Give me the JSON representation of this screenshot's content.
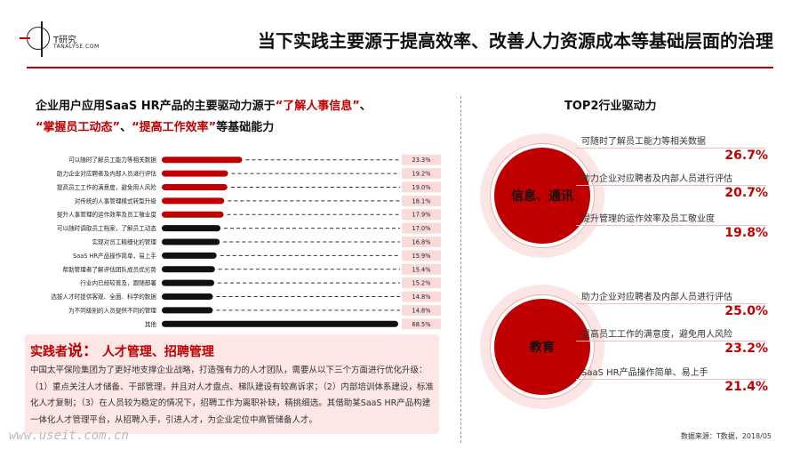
{
  "logo": {
    "name": "T研究",
    "sub": "TANALYSE.COM"
  },
  "header": {
    "title": "当下实践主要源于提高效率、改善人力资源成本等基础层面的治理"
  },
  "left_title": {
    "line1_pre": "企业用户应用SaaS HR产品的主要驱动力源于",
    "line1_hl": "“了解人事信息”",
    "line1_post": "、",
    "line2_hl1": "“掌握员工动态”",
    "line2_mid": "、",
    "line2_hl2": "“提高工作效率”",
    "line2_post": "等基础能力"
  },
  "chart_data": {
    "type": "bar",
    "orientation": "horizontal",
    "categories": [
      "可以随时了解员工能力等相关数据",
      "助力企业对应聘者及内部人员进行评估",
      "提高员工工作的满意度，避免用人风险",
      "对传统的人事管理模式转型升级",
      "提升人事管理的运作效率及员工敬业度",
      "可以随时调取员工档案，了解员工动态",
      "实现对员工精细化的管理",
      "SaaS HR产品操作简单，易上手",
      "帮助管理者了解评估团队成员优劣势",
      "行业内已经较普及，跟随部署",
      "选拔人才时提供客观、全面、科学的数据",
      "为不同级别的人员提供不同的管理",
      "其他"
    ],
    "values": [
      23.3,
      19.2,
      19.0,
      18.1,
      17.9,
      17.0,
      16.8,
      15.9,
      15.4,
      15.2,
      14.8,
      14.8,
      68.5
    ],
    "value_labels": [
      "23.3%",
      "19.2%",
      "19.0%",
      "18.1%",
      "17.9%",
      "17.0%",
      "16.8%",
      "15.9%",
      "15.4%",
      "15.2%",
      "14.8%",
      "14.8%",
      "68.5%"
    ],
    "highlight_count": 5,
    "colors": {
      "highlight": "#c00000",
      "normal": "#111111",
      "label_bg": "#fbdada"
    },
    "xlim": [
      0,
      68.5
    ]
  },
  "practitioner": {
    "head_pre": "实践者",
    "head_say": "说：",
    "head_topic": " 人才管理、招聘管理",
    "text": "中国太平保险集团为了更好地支撑企业战略，打造强有力的人才团队，需要从以下三个方面进行优化升级：（1）重点关注人才储备、干部管理，并且对人才盘点、梯队建设有较高诉求；（2）内部培训体系建设，标准化人才复制；（3）在人员较为稳定的情况下，招聘工作为离职补缺，精挑细选。其借助某SaaS HR产品构建一体化人才管理平台，从招聘入手，引进人才，为企业定位中高管储备人才。"
  },
  "right": {
    "title": "TOP2行业驱动力",
    "groups": [
      {
        "label": "信息、通讯",
        "items": [
          {
            "label": "可随时了解员工能力等相关数据",
            "value": "26.7%"
          },
          {
            "label": "助力企业对应聘者及内部人员进行评估",
            "value": "20.7%"
          },
          {
            "label": "提升管理的运作效率及员工敬业度",
            "value": "19.8%"
          }
        ]
      },
      {
        "label": "教育",
        "items": [
          {
            "label": "助力企业对应聘者及内部人员进行评估",
            "value": "25.0%"
          },
          {
            "label": "提高员工工作的满意度，避免用人风险",
            "value": "23.2%"
          },
          {
            "label": "SaaS HR产品操作简单、易上手",
            "value": "21.4%"
          }
        ]
      }
    ]
  },
  "source": "数据来源：T数据，2018/05",
  "watermark": "www.useit.com.cn"
}
